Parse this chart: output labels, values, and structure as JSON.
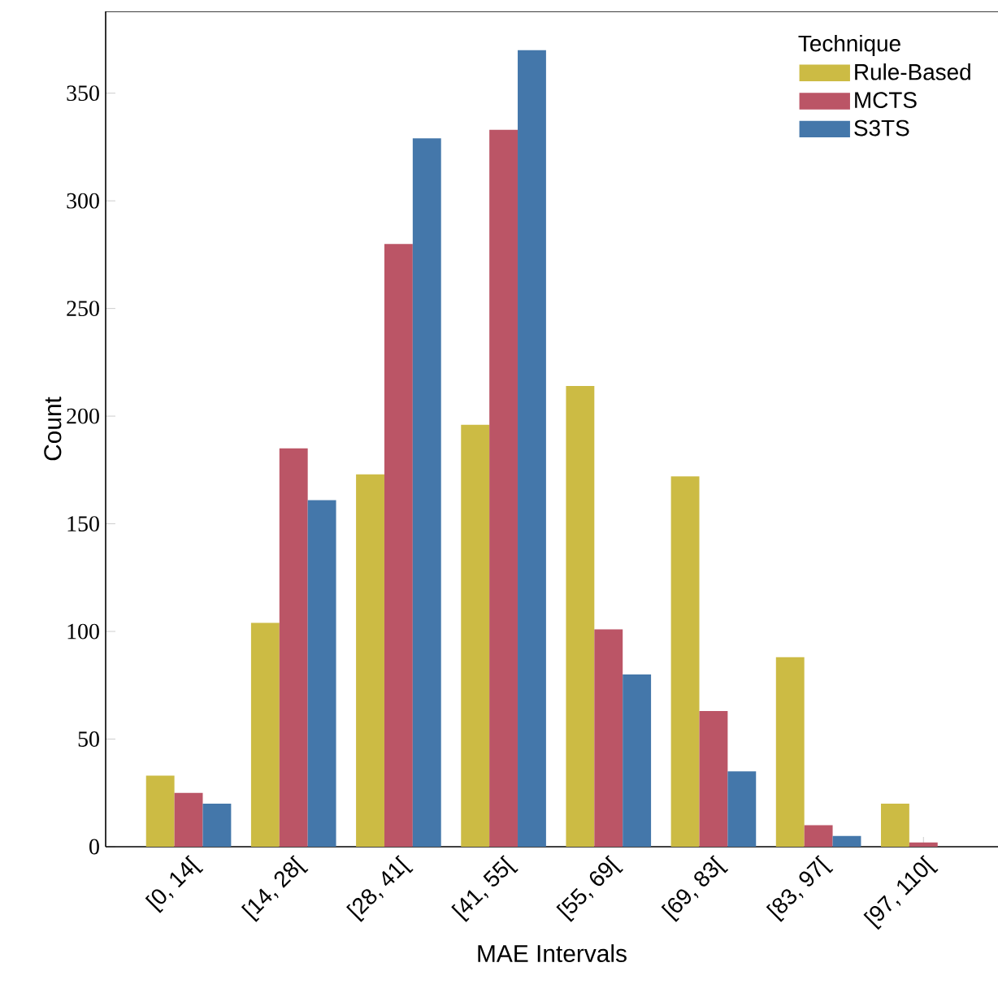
{
  "chart_data": {
    "type": "bar",
    "xlabel": "MAE Intervals",
    "ylabel": "Count",
    "legend_title": "Technique",
    "legend": "top right",
    "categories": [
      "[0, 14[",
      "[14, 28[",
      "[28, 41[",
      "[41, 55[",
      "[55, 69[",
      "[69, 83[",
      "[83, 97[",
      "[97, 110["
    ],
    "series": [
      {
        "name": "Rule-Based",
        "color": "#ccbb44",
        "values": [
          33,
          104,
          173,
          196,
          214,
          172,
          88,
          20
        ]
      },
      {
        "name": "MCTS",
        "color": "#bb5566",
        "values": [
          25,
          185,
          280,
          333,
          101,
          63,
          10,
          2
        ]
      },
      {
        "name": "S3TS",
        "color": "#4477aa",
        "values": [
          20,
          161,
          329,
          370,
          80,
          35,
          5,
          0
        ]
      }
    ],
    "ylim": [
      0,
      388
    ],
    "yticks": [
      0,
      50,
      100,
      150,
      200,
      250,
      300,
      350
    ]
  }
}
